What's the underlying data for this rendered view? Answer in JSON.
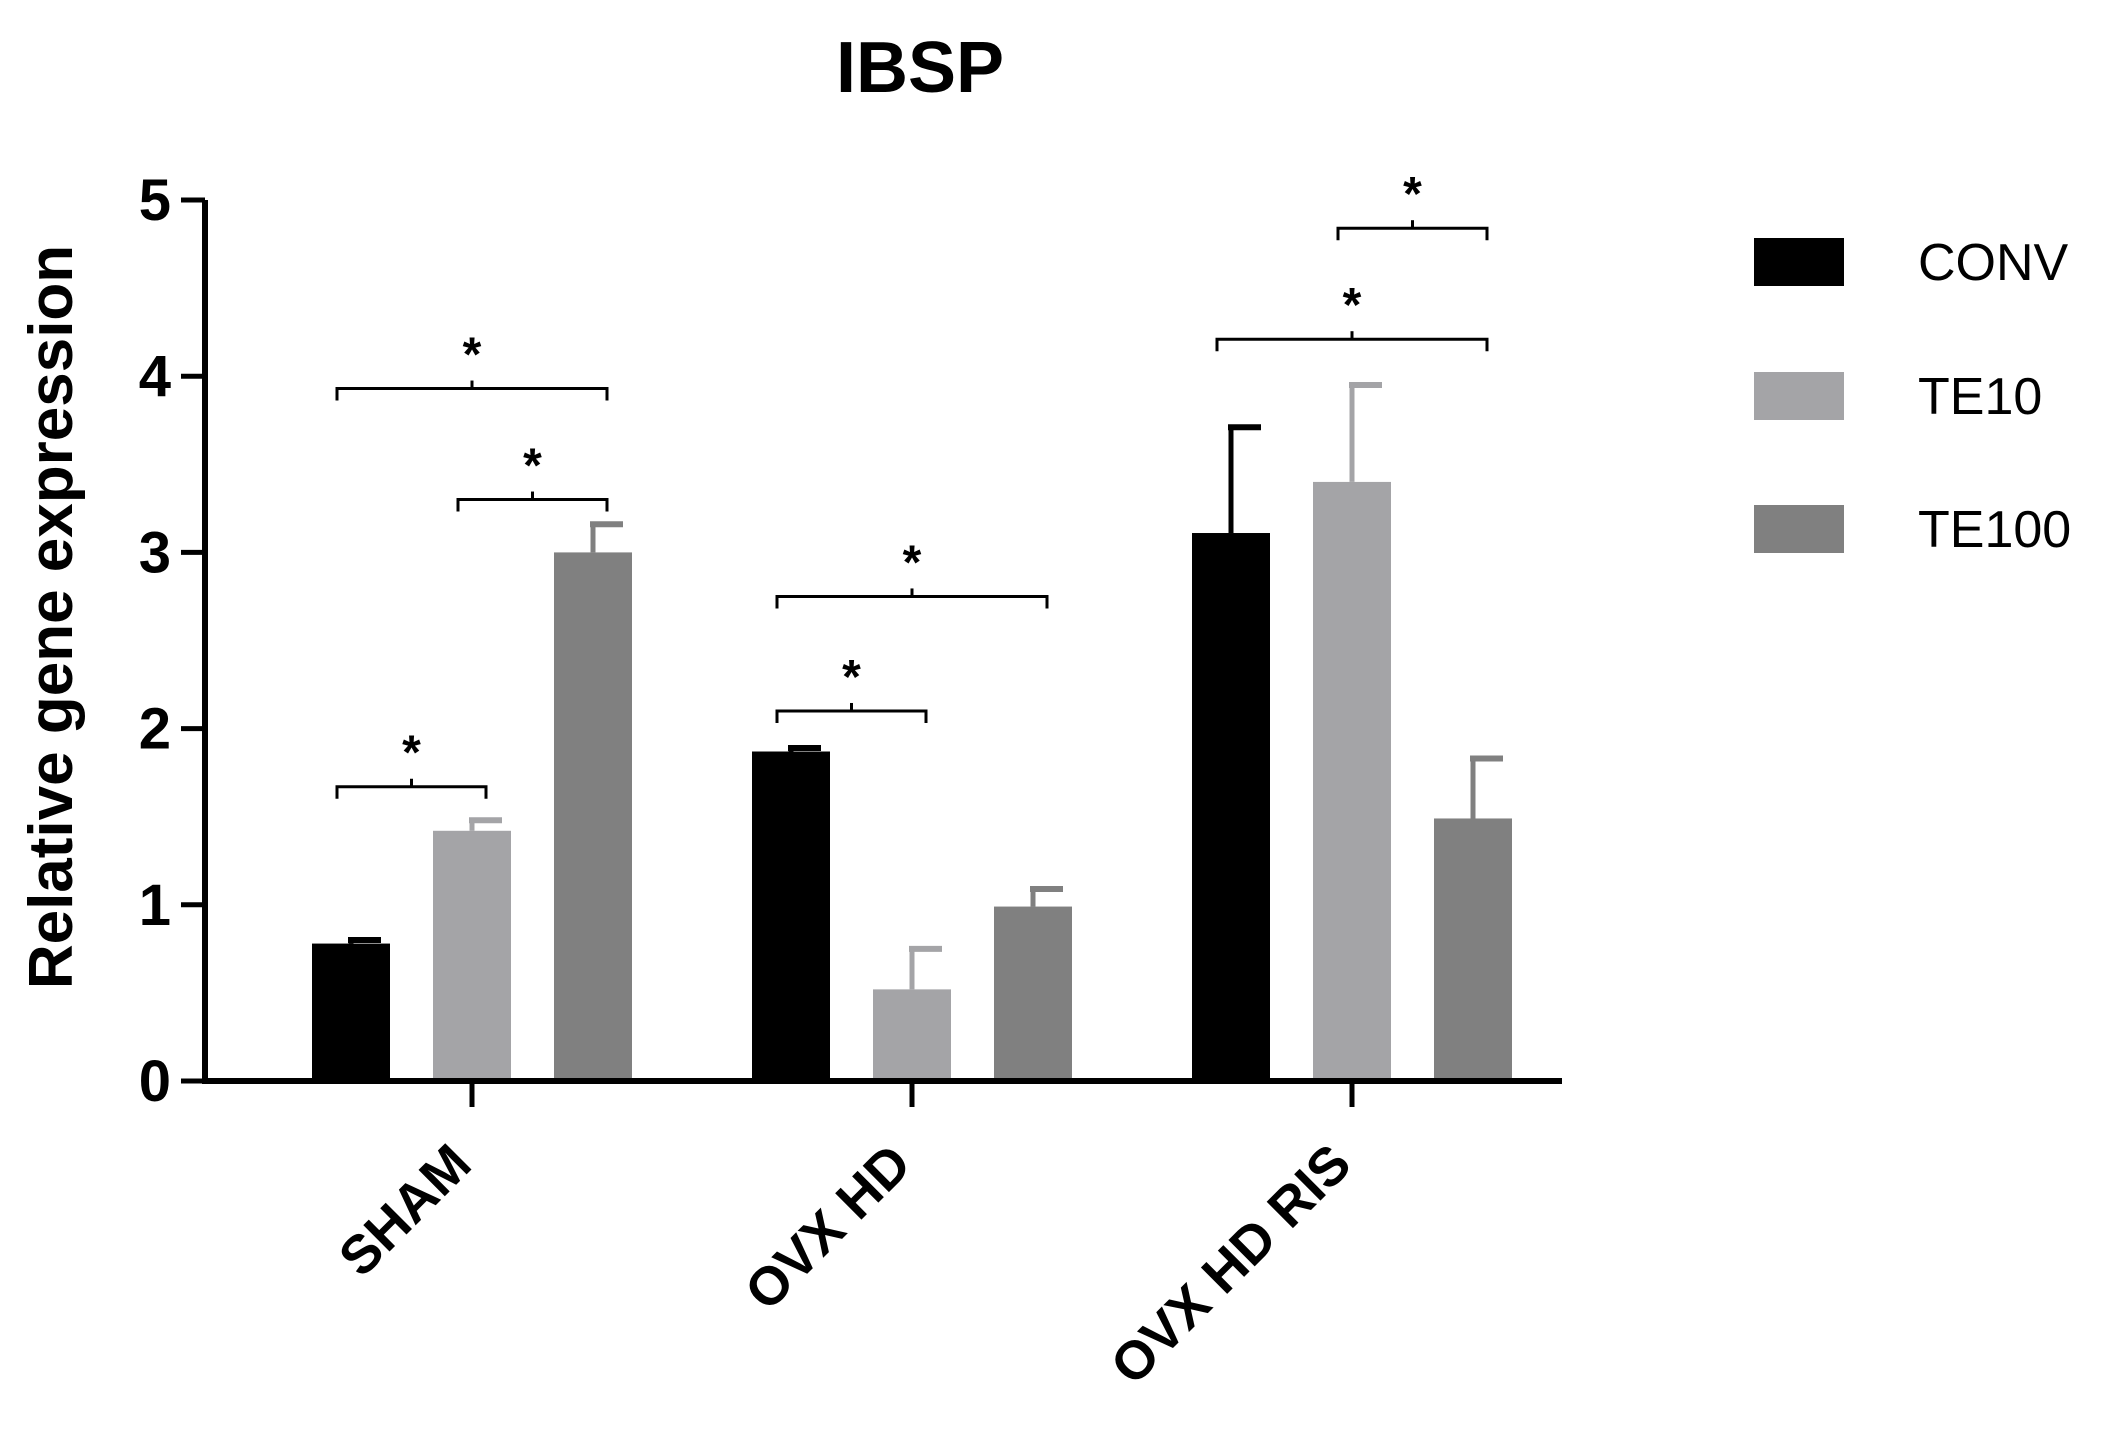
{
  "chart_data": {
    "type": "bar",
    "title": "IBSP",
    "xlabel": "",
    "ylabel": "Relative gene expression",
    "ylim": [
      0,
      5
    ],
    "yticks": [
      "0",
      "1",
      "2",
      "3",
      "4",
      "5"
    ],
    "categories": [
      "SHAM",
      "OVX HD",
      "OVX HD RIS"
    ],
    "series": [
      {
        "name": "CONV",
        "color": "#000000",
        "values": [
          0.78,
          1.87,
          3.11
        ],
        "errors": [
          0.02,
          0.02,
          0.6
        ]
      },
      {
        "name": "TE10",
        "color": "#a4a4a7",
        "values": [
          1.42,
          0.52,
          3.4
        ],
        "errors": [
          0.06,
          0.23,
          0.55
        ]
      },
      {
        "name": "TE100",
        "color": "#808080",
        "values": [
          3.0,
          0.99,
          1.49
        ],
        "errors": [
          0.16,
          0.1,
          0.34
        ]
      }
    ],
    "legend": {
      "position": "top-right",
      "labels": [
        "CONV",
        "TE10",
        "TE100"
      ]
    },
    "significance": [
      {
        "group": 0,
        "from": 0,
        "to": 1,
        "level": 1.67,
        "label": "*"
      },
      {
        "group": 0,
        "from": 1,
        "to": 2,
        "level": 3.3,
        "label": "*"
      },
      {
        "group": 0,
        "from": 0,
        "to": 2,
        "level": 3.93,
        "label": "*"
      },
      {
        "group": 1,
        "from": 0,
        "to": 1,
        "level": 2.1,
        "label": "*"
      },
      {
        "group": 1,
        "from": 0,
        "to": 2,
        "level": 2.75,
        "label": "*"
      },
      {
        "group": 2,
        "from": 0,
        "to": 2,
        "level": 4.21,
        "label": "*"
      },
      {
        "group": 2,
        "from": 1,
        "to": 2,
        "level": 4.84,
        "label": "*"
      }
    ]
  }
}
